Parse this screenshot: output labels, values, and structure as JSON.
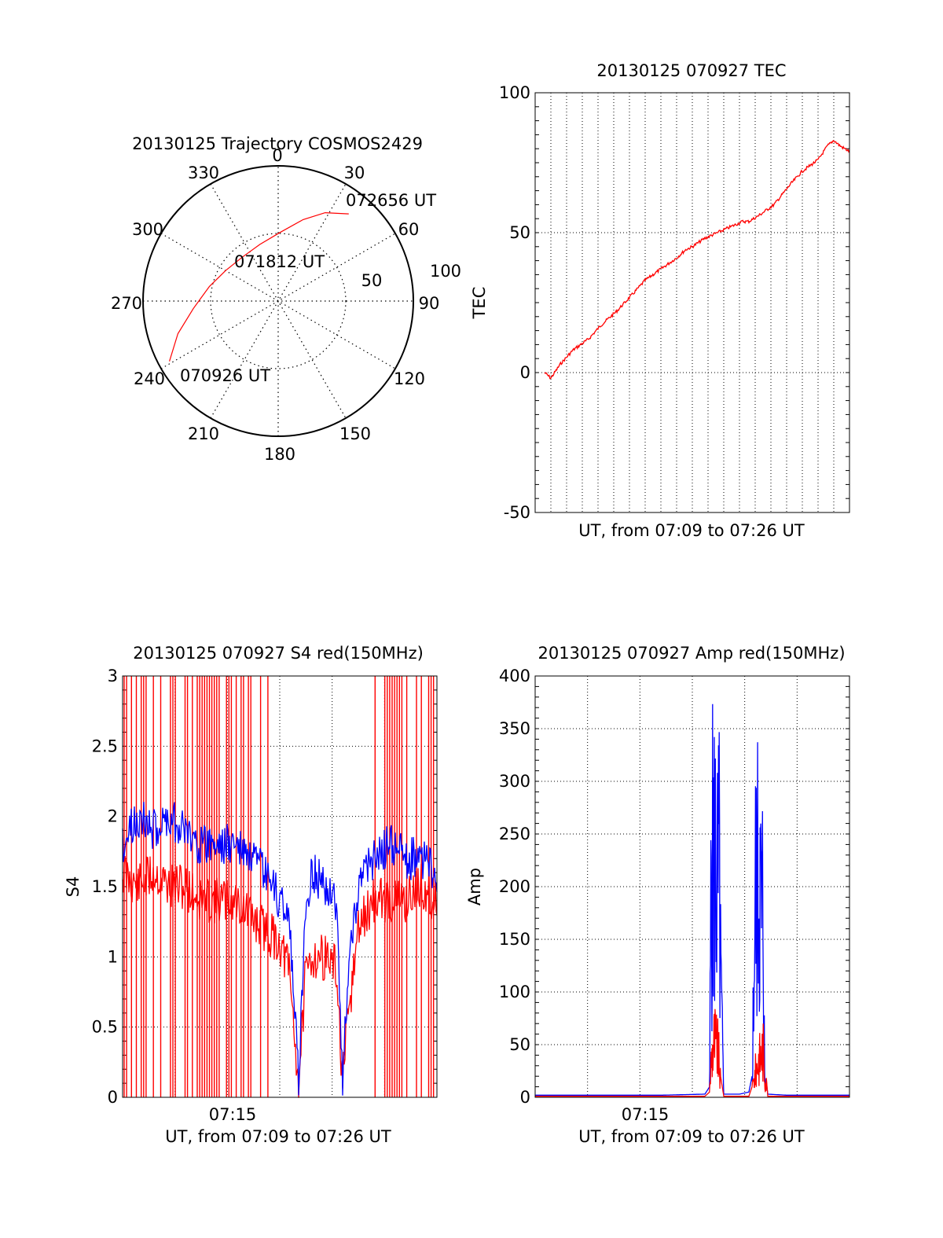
{
  "colors": {
    "red": "#ff0000",
    "blue": "#0000ff",
    "grid": "#000000",
    "axis": "#000000"
  },
  "chart_data": [
    {
      "id": "polar",
      "type": "polar-trajectory",
      "title": "20130125 Trajectory COSMOS2429",
      "azimuth_labels": [
        "0",
        "30",
        "60",
        "90",
        "120",
        "150",
        "180",
        "210",
        "240",
        "270",
        "300",
        "330"
      ],
      "radial_labels": [
        "50",
        "100"
      ],
      "radial_max": 100,
      "track_labels": [
        "072656 UT",
        "071812 UT",
        "070926 UT"
      ],
      "track": [
        {
          "az": 241,
          "r": 92
        },
        {
          "az": 252,
          "r": 78
        },
        {
          "az": 265,
          "r": 63
        },
        {
          "az": 282,
          "r": 52
        },
        {
          "az": 300,
          "r": 45
        },
        {
          "az": 320,
          "r": 42
        },
        {
          "az": 342,
          "r": 44
        },
        {
          "az": 2,
          "r": 51
        },
        {
          "az": 17,
          "r": 63
        },
        {
          "az": 28,
          "r": 74
        },
        {
          "az": 39,
          "r": 83
        }
      ]
    },
    {
      "id": "tec",
      "type": "line",
      "title": "20130125 070927 TEC",
      "xlabel": "UT, from 07:09 to 07:26 UT",
      "ylabel": "TEC",
      "xlim": [
        0,
        1
      ],
      "ylim": [
        -50,
        100
      ],
      "yticks": [
        "100",
        "50",
        "0",
        "-50"
      ],
      "ytick_values": [
        100,
        50,
        0,
        -50
      ],
      "series": [
        {
          "color": "red",
          "x": [
            0.03,
            0.05,
            0.08,
            0.12,
            0.17,
            0.21,
            0.26,
            0.31,
            0.35,
            0.4,
            0.45,
            0.48,
            0.5,
            0.54,
            0.58,
            0.62,
            0.66,
            0.68,
            0.71,
            0.76,
            0.81,
            0.85,
            0.9,
            0.93,
            0.95,
            0.97,
            1.0
          ],
          "y": [
            0,
            -2,
            3,
            8,
            12,
            17,
            22,
            28,
            33,
            37,
            41,
            44,
            45,
            48,
            50,
            52,
            54,
            54,
            56,
            60,
            67,
            72,
            76,
            81,
            83,
            81,
            79
          ]
        }
      ]
    },
    {
      "id": "s4",
      "type": "line",
      "title": "20130125 070927 S4 red(150MHz)",
      "xlabel": "UT, from 07:09 to 07:26 UT",
      "ylabel": "S4",
      "xlim": [
        0,
        1
      ],
      "ylim": [
        0,
        3
      ],
      "yticks": [
        "3",
        "2.5",
        "2",
        "1.5",
        "1",
        "0.5",
        "0"
      ],
      "ytick_values": [
        3,
        2.5,
        2,
        1.5,
        1,
        0.5,
        0
      ],
      "xticks": [
        "07:15"
      ],
      "xtick_values": [
        0.35
      ],
      "series": [
        {
          "name_hidden": true,
          "color": "red",
          "x": [
            0.0,
            0.05,
            0.1,
            0.15,
            0.2,
            0.25,
            0.3,
            0.36,
            0.4,
            0.45,
            0.5,
            0.53,
            0.56,
            0.58,
            0.6,
            0.65,
            0.68,
            0.7,
            0.72,
            0.75,
            0.8,
            0.85,
            0.9,
            0.95,
            1.0
          ],
          "y": [
            1.6,
            1.5,
            1.6,
            1.5,
            1.5,
            1.4,
            1.4,
            1.4,
            1.3,
            1.2,
            1.1,
            0.9,
            0.1,
            0.8,
            1.0,
            1.0,
            0.9,
            0.1,
            0.6,
            1.2,
            1.4,
            1.4,
            1.4,
            1.5,
            1.4
          ]
        },
        {
          "color": "blue",
          "x": [
            0.0,
            0.05,
            0.1,
            0.15,
            0.2,
            0.25,
            0.3,
            0.36,
            0.4,
            0.45,
            0.5,
            0.53,
            0.56,
            0.58,
            0.6,
            0.65,
            0.68,
            0.7,
            0.72,
            0.75,
            0.8,
            0.85,
            0.9,
            0.95,
            1.0
          ],
          "y": [
            1.8,
            2.0,
            1.9,
            2.0,
            1.9,
            1.8,
            1.8,
            1.8,
            1.7,
            1.6,
            1.4,
            1.3,
            0.1,
            1.3,
            1.6,
            1.5,
            1.4,
            0.1,
            1.0,
            1.5,
            1.7,
            1.8,
            1.7,
            1.7,
            1.6
          ]
        }
      ]
    },
    {
      "id": "amp",
      "type": "line",
      "title": "20130125 070927 Amp red(150MHz)",
      "xlabel": "UT, from 07:09 to 07:26 UT",
      "ylabel": "Amp",
      "xlim": [
        0,
        1
      ],
      "ylim": [
        0,
        400
      ],
      "yticks": [
        "400",
        "350",
        "300",
        "250",
        "200",
        "150",
        "100",
        "50",
        "0"
      ],
      "ytick_values": [
        400,
        350,
        300,
        250,
        200,
        150,
        100,
        50,
        0
      ],
      "xticks": [
        "07:15"
      ],
      "xtick_values": [
        0.35
      ],
      "series": [
        {
          "color": "blue",
          "x": [
            0.0,
            0.2,
            0.4,
            0.54,
            0.555,
            0.56,
            0.57,
            0.575,
            0.58,
            0.585,
            0.59,
            0.6,
            0.65,
            0.68,
            0.69,
            0.7,
            0.71,
            0.715,
            0.72,
            0.725,
            0.73,
            0.74,
            0.8,
            0.9,
            1.0
          ],
          "y": [
            2,
            2,
            2,
            3,
            10,
            370,
            390,
            395,
            340,
            380,
            200,
            3,
            3,
            5,
            20,
            330,
            360,
            355,
            280,
            340,
            30,
            3,
            2,
            2,
            2
          ]
        },
        {
          "color": "red",
          "x": [
            0.0,
            0.54,
            0.555,
            0.56,
            0.57,
            0.58,
            0.585,
            0.59,
            0.6,
            0.68,
            0.69,
            0.7,
            0.71,
            0.72,
            0.725,
            0.73,
            0.74,
            1.0
          ],
          "y": [
            1,
            1,
            5,
            60,
            95,
            80,
            60,
            20,
            1,
            1,
            10,
            40,
            60,
            70,
            80,
            40,
            1,
            1
          ]
        }
      ]
    }
  ]
}
